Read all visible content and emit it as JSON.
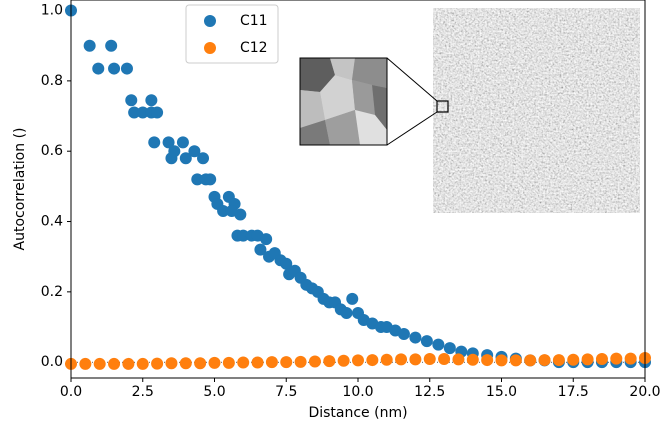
{
  "chart_data": {
    "type": "scatter",
    "xlabel": "Distance (nm)",
    "ylabel": "Autocorrelation ()",
    "xlim": [
      0,
      20
    ],
    "ylim": [
      -0.045,
      1.03
    ],
    "xticks": [
      {
        "value": 0,
        "label": "0.0"
      },
      {
        "value": 2.5,
        "label": "2.5"
      },
      {
        "value": 5,
        "label": "5.0"
      },
      {
        "value": 7.5,
        "label": "7.5"
      },
      {
        "value": 10,
        "label": "10.0"
      },
      {
        "value": 12.5,
        "label": "12.5"
      },
      {
        "value": 15,
        "label": "15.0"
      },
      {
        "value": 17.5,
        "label": "17.5"
      },
      {
        "value": 20,
        "label": "20.0"
      }
    ],
    "yticks": [
      {
        "value": 0,
        "label": "0.0"
      },
      {
        "value": 0.2,
        "label": "0.2"
      },
      {
        "value": 0.4,
        "label": "0.4"
      },
      {
        "value": 0.6,
        "label": "0.6"
      },
      {
        "value": 0.8,
        "label": "0.8"
      },
      {
        "value": 1,
        "label": "1.0"
      }
    ],
    "hline": 0,
    "legend": "upper center",
    "series": [
      {
        "name": "C11",
        "color": "#1f77b4",
        "x": [
          0,
          0.65,
          0.95,
          1.4,
          1.5,
          1.95,
          2.1,
          2.2,
          2.5,
          2.8,
          2.8,
          3.0,
          2.9,
          3.4,
          3.5,
          3.6,
          3.9,
          4.0,
          4.3,
          4.4,
          4.7,
          4.85,
          4.6,
          5.0,
          5.1,
          5.3,
          5.5,
          5.7,
          5.9,
          5.6,
          5.8,
          6.0,
          6.3,
          6.5,
          6.6,
          6.8,
          6.9,
          7.1,
          7.3,
          7.5,
          7.6,
          7.8,
          8.0,
          8.2,
          8.4,
          8.6,
          8.8,
          9.0,
          9.2,
          9.4,
          9.6,
          9.8,
          10.0,
          10.2,
          10.5,
          10.8,
          11.0,
          11.3,
          11.6,
          12.0,
          12.4,
          12.8,
          13.2,
          13.6,
          14.0,
          14.5,
          15.0,
          15.5,
          16.0,
          16.5,
          17.0,
          17.5,
          18.0,
          18.5,
          19.0,
          19.5,
          20.0
        ],
        "values": [
          1.0,
          0.9,
          0.835,
          0.9,
          0.835,
          0.835,
          0.745,
          0.71,
          0.71,
          0.745,
          0.71,
          0.71,
          0.625,
          0.625,
          0.58,
          0.6,
          0.625,
          0.58,
          0.6,
          0.52,
          0.52,
          0.52,
          0.58,
          0.47,
          0.45,
          0.43,
          0.47,
          0.45,
          0.42,
          0.43,
          0.36,
          0.36,
          0.36,
          0.36,
          0.32,
          0.35,
          0.3,
          0.31,
          0.29,
          0.28,
          0.25,
          0.26,
          0.24,
          0.22,
          0.21,
          0.2,
          0.18,
          0.17,
          0.17,
          0.15,
          0.14,
          0.18,
          0.14,
          0.12,
          0.11,
          0.1,
          0.1,
          0.09,
          0.08,
          0.07,
          0.06,
          0.05,
          0.04,
          0.03,
          0.025,
          0.02,
          0.015,
          0.01,
          0.005,
          0.005,
          0,
          0,
          0,
          0,
          0,
          0,
          0
        ]
      },
      {
        "name": "C12",
        "color": "#ff7f0e",
        "x": [
          0,
          0.5,
          1,
          1.5,
          2,
          2.5,
          3,
          3.5,
          4,
          4.5,
          5,
          5.5,
          6,
          6.5,
          7,
          7.5,
          8,
          8.5,
          9,
          9.5,
          10,
          10.5,
          11,
          11.5,
          12,
          12.5,
          13,
          13.5,
          14,
          14.5,
          15,
          15.5,
          16,
          16.5,
          17,
          17.5,
          18,
          18.5,
          19,
          19.5,
          20
        ],
        "values": [
          -0.005,
          -0.005,
          -0.005,
          -0.005,
          -0.005,
          -0.005,
          -0.004,
          -0.003,
          -0.003,
          -0.003,
          -0.002,
          -0.002,
          -0.001,
          -0.001,
          0,
          0,
          0.001,
          0.002,
          0.003,
          0.004,
          0.005,
          0.006,
          0.007,
          0.008,
          0.008,
          0.009,
          0.009,
          0.008,
          0.007,
          0.006,
          0.005,
          0.005,
          0.005,
          0.006,
          0.006,
          0.007,
          0.008,
          0.009,
          0.01,
          0.01,
          0.012
        ]
      }
    ]
  }
}
